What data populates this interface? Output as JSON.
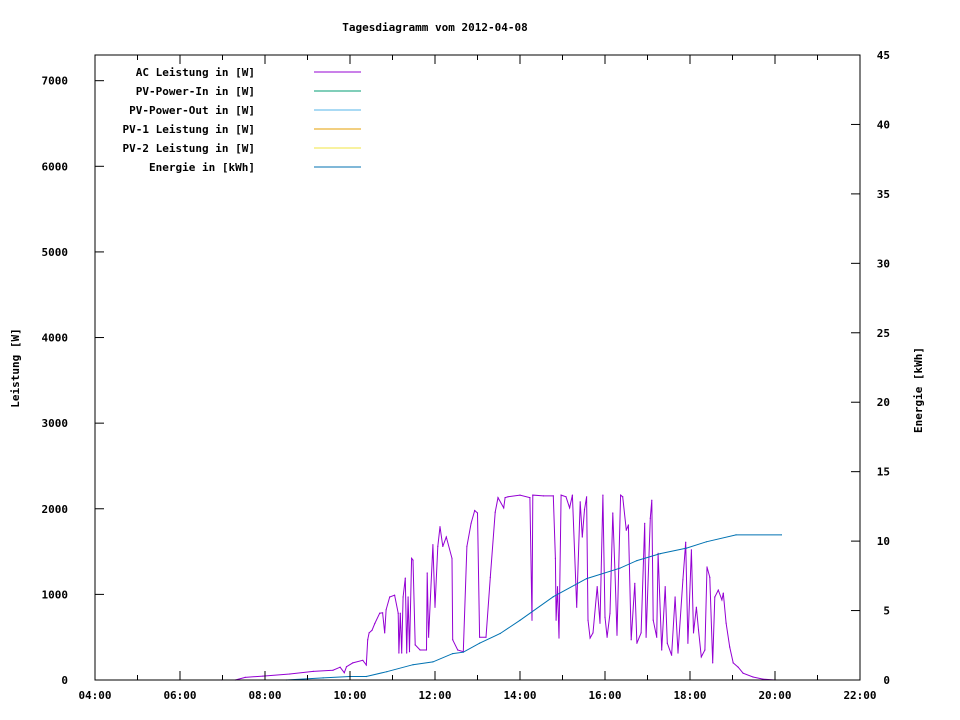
{
  "chart_data": {
    "type": "line",
    "title": "Tagesdiagramm vom 2012-04-08",
    "xlabel": "",
    "ylabel": "Leistung [W]",
    "y2label": "Energie [kWh]",
    "xlim": [
      "04:00",
      "22:00"
    ],
    "xticks": [
      "04:00",
      "06:00",
      "08:00",
      "10:00",
      "12:00",
      "14:00",
      "16:00",
      "18:00",
      "20:00",
      "22:00"
    ],
    "ylim": [
      0,
      7300
    ],
    "yticks": [
      "0",
      "1000",
      "2000",
      "3000",
      "4000",
      "5000",
      "6000",
      "7000"
    ],
    "y2lim": [
      0,
      45
    ],
    "y2ticks": [
      "0",
      "5",
      "10",
      "15",
      "20",
      "25",
      "30",
      "35",
      "40",
      "45"
    ],
    "grid": false,
    "legend_position": "top-left",
    "series": [
      {
        "name": "AC Leistung in [W]",
        "axis": "y",
        "color": "#9400d3",
        "points": [
          [
            "06:59",
            0
          ],
          [
            "07:18",
            0
          ],
          [
            "07:32",
            30
          ],
          [
            "07:57",
            45
          ],
          [
            "08:35",
            70
          ],
          [
            "09:08",
            100
          ],
          [
            "09:36",
            115
          ],
          [
            "09:46",
            150
          ],
          [
            "09:52",
            85
          ],
          [
            "09:55",
            155
          ],
          [
            "10:04",
            200
          ],
          [
            "10:18",
            230
          ],
          [
            "10:23",
            175
          ],
          [
            "10:25",
            470
          ],
          [
            "10:27",
            550
          ],
          [
            "10:31",
            580
          ],
          [
            "10:35",
            660
          ],
          [
            "10:42",
            780
          ],
          [
            "10:46",
            785
          ],
          [
            "10:49",
            550
          ],
          [
            "10:51",
            820
          ],
          [
            "10:56",
            970
          ],
          [
            "11:03",
            990
          ],
          [
            "11:08",
            780
          ],
          [
            "11:09",
            315
          ],
          [
            "11:11",
            780
          ],
          [
            "11:13",
            315
          ],
          [
            "11:15",
            970
          ],
          [
            "11:18",
            1190
          ],
          [
            "11:20",
            315
          ],
          [
            "11:22",
            970
          ],
          [
            "11:24",
            330
          ],
          [
            "11:27",
            1420
          ],
          [
            "11:29",
            1400
          ],
          [
            "11:32",
            410
          ],
          [
            "11:39",
            350
          ],
          [
            "11:48",
            350
          ],
          [
            "11:49",
            1250
          ],
          [
            "11:51",
            500
          ],
          [
            "11:57",
            1580
          ],
          [
            "12:00",
            850
          ],
          [
            "12:04",
            1560
          ],
          [
            "12:07",
            1790
          ],
          [
            "12:11",
            1560
          ],
          [
            "12:16",
            1670
          ],
          [
            "12:24",
            1420
          ],
          [
            "12:25",
            470
          ],
          [
            "12:32",
            350
          ],
          [
            "12:40",
            330
          ],
          [
            "12:45",
            1560
          ],
          [
            "12:51",
            1830
          ],
          [
            "12:56",
            1980
          ],
          [
            "13:00",
            1950
          ],
          [
            "13:03",
            500
          ],
          [
            "13:12",
            500
          ],
          [
            "13:18",
            1200
          ],
          [
            "13:25",
            1960
          ],
          [
            "13:29",
            2130
          ],
          [
            "13:37",
            2010
          ],
          [
            "13:39",
            2130
          ],
          [
            "13:43",
            2140
          ],
          [
            "14:00",
            2160
          ],
          [
            "14:14",
            2130
          ],
          [
            "14:17",
            700
          ],
          [
            "14:18",
            2160
          ],
          [
            "14:33",
            2150
          ],
          [
            "14:47",
            2150
          ],
          [
            "14:50",
            1420
          ],
          [
            "14:51",
            700
          ],
          [
            "14:53",
            1090
          ],
          [
            "14:55",
            490
          ],
          [
            "14:58",
            2160
          ],
          [
            "15:05",
            2140
          ],
          [
            "15:10",
            2010
          ],
          [
            "15:14",
            2160
          ],
          [
            "15:20",
            850
          ],
          [
            "15:25",
            2080
          ],
          [
            "15:28",
            1670
          ],
          [
            "15:31",
            1990
          ],
          [
            "15:34",
            2140
          ],
          [
            "15:36",
            700
          ],
          [
            "15:39",
            490
          ],
          [
            "15:43",
            550
          ],
          [
            "15:49",
            1090
          ],
          [
            "15:53",
            665
          ],
          [
            "15:57",
            2160
          ],
          [
            "16:00",
            735
          ],
          [
            "16:03",
            500
          ],
          [
            "16:07",
            780
          ],
          [
            "16:11",
            1950
          ],
          [
            "16:14",
            1290
          ],
          [
            "16:17",
            525
          ],
          [
            "16:22",
            2160
          ],
          [
            "16:25",
            2140
          ],
          [
            "16:30",
            1750
          ],
          [
            "16:33",
            1810
          ],
          [
            "16:37",
            470
          ],
          [
            "16:42",
            1130
          ],
          [
            "16:45",
            430
          ],
          [
            "16:51",
            550
          ],
          [
            "16:56",
            1830
          ],
          [
            "16:58",
            500
          ],
          [
            "17:04",
            1890
          ],
          [
            "17:06",
            2100
          ],
          [
            "17:08",
            700
          ],
          [
            "17:13",
            500
          ],
          [
            "17:15",
            1480
          ],
          [
            "17:20",
            350
          ],
          [
            "17:25",
            1090
          ],
          [
            "17:28",
            430
          ],
          [
            "17:34",
            290
          ],
          [
            "17:39",
            970
          ],
          [
            "17:43",
            315
          ],
          [
            "17:50",
            1170
          ],
          [
            "17:54",
            1610
          ],
          [
            "17:57",
            430
          ],
          [
            "18:02",
            1520
          ],
          [
            "18:05",
            550
          ],
          [
            "18:09",
            850
          ],
          [
            "18:12",
            585
          ],
          [
            "18:16",
            270
          ],
          [
            "18:21",
            350
          ],
          [
            "18:24",
            1320
          ],
          [
            "18:28",
            1200
          ],
          [
            "18:32",
            200
          ],
          [
            "18:35",
            970
          ],
          [
            "18:40",
            1050
          ],
          [
            "18:45",
            935
          ],
          [
            "18:47",
            1015
          ],
          [
            "18:51",
            665
          ],
          [
            "18:56",
            385
          ],
          [
            "19:01",
            200
          ],
          [
            "19:08",
            150
          ],
          [
            "19:15",
            80
          ],
          [
            "19:29",
            35
          ],
          [
            "19:43",
            10
          ],
          [
            "20:00",
            0
          ]
        ]
      },
      {
        "name": "PV-Power-In in [W]",
        "axis": "y",
        "color": "#009e73",
        "points": []
      },
      {
        "name": "PV-Power-Out in [W]",
        "axis": "y",
        "color": "#56b4e9",
        "points": []
      },
      {
        "name": "PV-1 Leistung in [W]",
        "axis": "y",
        "color": "#e69f00",
        "points": []
      },
      {
        "name": "PV-2 Leistung in [W]",
        "axis": "y",
        "color": "#f0e442",
        "points": []
      },
      {
        "name": "Energie in [kWh]",
        "axis": "y2",
        "color": "#0072b2",
        "points": [
          [
            "08:30",
            0
          ],
          [
            "09:22",
            0.15
          ],
          [
            "10:00",
            0.25
          ],
          [
            "10:23",
            0.25
          ],
          [
            "10:52",
            0.6
          ],
          [
            "11:29",
            1.1
          ],
          [
            "11:57",
            1.3
          ],
          [
            "12:25",
            1.9
          ],
          [
            "12:40",
            2.0
          ],
          [
            "13:03",
            2.65
          ],
          [
            "13:32",
            3.35
          ],
          [
            "14:00",
            4.3
          ],
          [
            "14:47",
            6.0
          ],
          [
            "15:34",
            7.3
          ],
          [
            "16:21",
            8.05
          ],
          [
            "16:45",
            8.6
          ],
          [
            "17:18",
            9.1
          ],
          [
            "17:55",
            9.5
          ],
          [
            "18:23",
            9.95
          ],
          [
            "19:05",
            10.45
          ],
          [
            "20:09",
            10.45
          ]
        ]
      }
    ]
  }
}
